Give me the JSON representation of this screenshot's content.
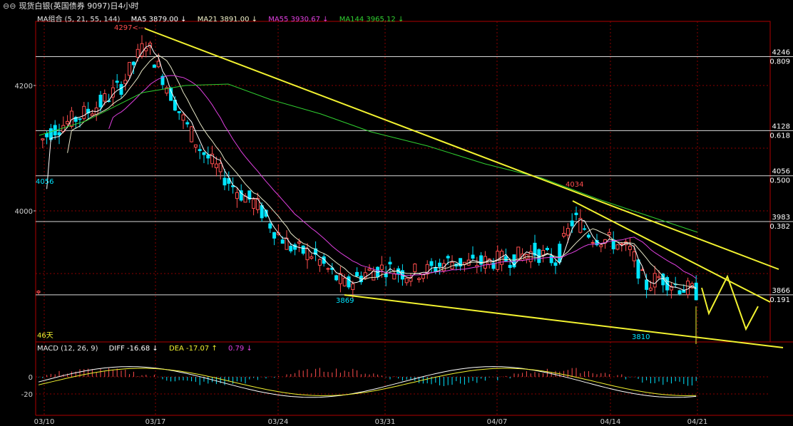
{
  "title": "现货白银(英国债券 9097)日4小时",
  "ma_legend": {
    "name": "MA组合 (5, 21, 55, 144)",
    "ma5": "MA5 3879.00 ↓",
    "ma21": "MA21 3891.00 ↓",
    "ma55": "MA55 3930.67 ↓",
    "ma144": "MA144 3965.12 ↓"
  },
  "macd_legend": {
    "name": "MACD (12, 26, 9)",
    "diff": "DIFF  -16.68 ↓",
    "dea": "DEA  -17.07 ↑",
    "macd": "0.79 ↓"
  },
  "annotations": {
    "high_label": "4297<---",
    "peak_label": "4034",
    "low1_label": "3869",
    "low2_label": "3810",
    "left_price_label": "4056",
    "days_label": "46天"
  },
  "colors": {
    "up": "#ff4d4d",
    "down": "#00e5ff",
    "ma5": "#ffffff",
    "ma21": "#e8e8c8",
    "ma55": "#e040e0",
    "ma144": "#30d030",
    "trend": "#f2f230",
    "grid": "#8b0000",
    "fib": "#d9d9d9",
    "axis_text": "#d0d0d0"
  },
  "chart_data": {
    "type": "candlestick",
    "price_axis_ticks": [
      4200,
      4000
    ],
    "macd_axis_ticks": [
      0,
      -20
    ],
    "x_tick_labels": [
      "03/10",
      "03/17",
      "03/24",
      "03/31",
      "04/07",
      "04/14",
      "04/21"
    ],
    "fib_levels": [
      {
        "price": 4246,
        "ratio": "0.809"
      },
      {
        "price": 4128,
        "ratio": "0.618"
      },
      {
        "price": 4056,
        "ratio": "0.500"
      },
      {
        "price": 3983,
        "ratio": "0.382"
      },
      {
        "price": 3866,
        "ratio": "0.191"
      }
    ],
    "key_points": {
      "high": 4297,
      "peak": 4034,
      "low1": 3869,
      "low2": 3810
    }
  }
}
